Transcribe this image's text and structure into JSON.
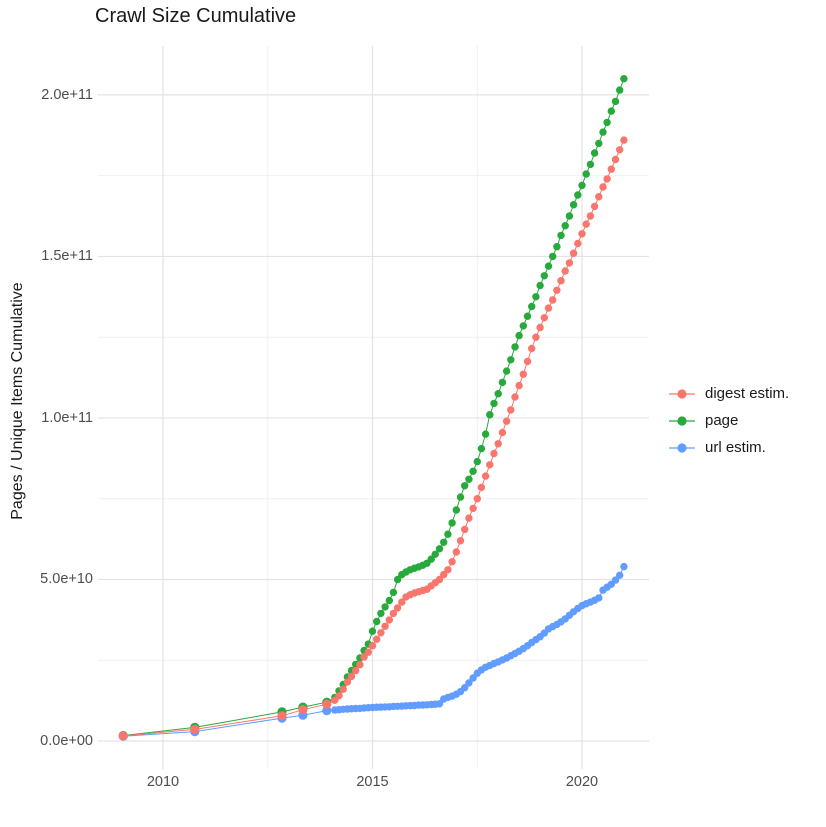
{
  "chart": {
    "title": "Crawl Size Cumulative",
    "ylabel": "Pages / Unique Items Cumulative"
  },
  "chart_data": {
    "type": "scatter",
    "title": "Crawl Size Cumulative",
    "xlabel": "",
    "ylabel": "Pages / Unique Items Cumulative",
    "x_unit": "year (decimal)",
    "y_unit": "count, in units of 1e9 (multiply by 1e9)",
    "xlim": [
      2008.45,
      2021.6
    ],
    "ylim_e9": [
      -8.7,
      215.2
    ],
    "grid": true,
    "legend_position": "right",
    "x_ticks": [
      {
        "value": 2010,
        "label": "2010"
      },
      {
        "value": 2015,
        "label": "2015"
      },
      {
        "value": 2020,
        "label": "2020"
      }
    ],
    "y_ticks": [
      {
        "value_e9": 0,
        "label": "0.0e+00"
      },
      {
        "value_e9": 50,
        "label": "5.0e+10"
      },
      {
        "value_e9": 100,
        "label": "1.0e+11"
      },
      {
        "value_e9": 150,
        "label": "1.5e+11"
      },
      {
        "value_e9": 200,
        "label": "2.0e+11"
      }
    ],
    "colors": {
      "background": "#FFFFFF",
      "grid_major": "#E3E3E3",
      "grid_minor": "#F0F0F0",
      "tick_text": "#4D4D4D",
      "title_text": "#1A1A1A"
    },
    "series": [
      {
        "key": "digest-estim",
        "name": "digest estim.",
        "color": "#F8766D",
        "points": [
          [
            2009.05,
            1.6
          ],
          [
            2010.76,
            3.6
          ],
          [
            2012.84,
            7.8
          ],
          [
            2013.34,
            9.7
          ],
          [
            2013.91,
            11.4
          ],
          [
            2014.1,
            12.6
          ],
          [
            2014.2,
            14
          ],
          [
            2014.3,
            16
          ],
          [
            2014.4,
            18.3
          ],
          [
            2014.5,
            20
          ],
          [
            2014.6,
            21.8
          ],
          [
            2014.7,
            23.6
          ],
          [
            2014.8,
            26
          ],
          [
            2014.9,
            27.5
          ],
          [
            2015,
            29.5
          ],
          [
            2015.1,
            31.5
          ],
          [
            2015.2,
            33.5
          ],
          [
            2015.3,
            35.5
          ],
          [
            2015.4,
            37.5
          ],
          [
            2015.5,
            39.5
          ],
          [
            2015.6,
            41.2
          ],
          [
            2015.7,
            43
          ],
          [
            2015.8,
            44.6
          ],
          [
            2015.9,
            45.3
          ],
          [
            2016,
            45.8
          ],
          [
            2016.1,
            46.2
          ],
          [
            2016.2,
            46.6
          ],
          [
            2016.3,
            47
          ],
          [
            2016.4,
            48
          ],
          [
            2016.5,
            49
          ],
          [
            2016.6,
            50
          ],
          [
            2016.7,
            51.5
          ],
          [
            2016.8,
            53
          ],
          [
            2016.9,
            55.5
          ],
          [
            2017,
            58.5
          ],
          [
            2017.1,
            62
          ],
          [
            2017.2,
            65.5
          ],
          [
            2017.3,
            69
          ],
          [
            2017.4,
            72
          ],
          [
            2017.5,
            75
          ],
          [
            2017.6,
            78.5
          ],
          [
            2017.7,
            82
          ],
          [
            2017.8,
            85.5
          ],
          [
            2017.9,
            89
          ],
          [
            2018,
            92
          ],
          [
            2018.1,
            95.5
          ],
          [
            2018.2,
            99
          ],
          [
            2018.3,
            102.5
          ],
          [
            2018.4,
            106.5
          ],
          [
            2018.5,
            110
          ],
          [
            2018.6,
            113.5
          ],
          [
            2018.7,
            117.5
          ],
          [
            2018.8,
            121.5
          ],
          [
            2018.9,
            125
          ],
          [
            2019,
            128
          ],
          [
            2019.1,
            131
          ],
          [
            2019.2,
            134
          ],
          [
            2019.3,
            136.5
          ],
          [
            2019.4,
            139.5
          ],
          [
            2019.5,
            142.5
          ],
          [
            2019.6,
            145.5
          ],
          [
            2019.7,
            148
          ],
          [
            2019.8,
            151
          ],
          [
            2019.9,
            154
          ],
          [
            2020,
            157
          ],
          [
            2020.1,
            160
          ],
          [
            2020.2,
            162.5
          ],
          [
            2020.3,
            165.5
          ],
          [
            2020.4,
            168.5
          ],
          [
            2020.5,
            171.5
          ],
          [
            2020.6,
            174
          ],
          [
            2020.7,
            177
          ],
          [
            2020.8,
            180
          ],
          [
            2020.9,
            183
          ],
          [
            2021,
            186
          ]
        ]
      },
      {
        "key": "page",
        "name": "page",
        "color": "#28A93C",
        "points": [
          [
            2009.05,
            1.7
          ],
          [
            2010.76,
            4.2
          ],
          [
            2012.84,
            9
          ],
          [
            2013.34,
            10.5
          ],
          [
            2013.91,
            12
          ],
          [
            2014.1,
            13.5
          ],
          [
            2014.2,
            15.5
          ],
          [
            2014.3,
            17.5
          ],
          [
            2014.4,
            19.8
          ],
          [
            2014.5,
            21.8
          ],
          [
            2014.6,
            23.7
          ],
          [
            2014.7,
            25.7
          ],
          [
            2014.8,
            28
          ],
          [
            2014.9,
            30
          ],
          [
            2015,
            34
          ],
          [
            2015.1,
            37
          ],
          [
            2015.2,
            39.5
          ],
          [
            2015.3,
            41.5
          ],
          [
            2015.4,
            43.5
          ],
          [
            2015.5,
            46
          ],
          [
            2015.6,
            50
          ],
          [
            2015.7,
            51.5
          ],
          [
            2015.8,
            52.3
          ],
          [
            2015.9,
            53
          ],
          [
            2016,
            53.5
          ],
          [
            2016.1,
            53.9
          ],
          [
            2016.2,
            54.4
          ],
          [
            2016.3,
            55
          ],
          [
            2016.4,
            56.3
          ],
          [
            2016.5,
            57.8
          ],
          [
            2016.6,
            59.5
          ],
          [
            2016.7,
            61.5
          ],
          [
            2016.8,
            64
          ],
          [
            2016.9,
            67.5
          ],
          [
            2017,
            71.5
          ],
          [
            2017.1,
            75.5
          ],
          [
            2017.2,
            79
          ],
          [
            2017.3,
            81
          ],
          [
            2017.4,
            83.5
          ],
          [
            2017.5,
            86.5
          ],
          [
            2017.6,
            90.5
          ],
          [
            2017.7,
            95
          ],
          [
            2017.8,
            101
          ],
          [
            2017.9,
            104.5
          ],
          [
            2018,
            107.5
          ],
          [
            2018.1,
            111
          ],
          [
            2018.2,
            114.5
          ],
          [
            2018.3,
            118
          ],
          [
            2018.4,
            122
          ],
          [
            2018.5,
            125.5
          ],
          [
            2018.6,
            128.5
          ],
          [
            2018.7,
            131.5
          ],
          [
            2018.8,
            134.5
          ],
          [
            2018.9,
            137.5
          ],
          [
            2019,
            141
          ],
          [
            2019.1,
            144
          ],
          [
            2019.2,
            147
          ],
          [
            2019.3,
            150
          ],
          [
            2019.4,
            153
          ],
          [
            2019.5,
            156.5
          ],
          [
            2019.6,
            159.5
          ],
          [
            2019.7,
            162.5
          ],
          [
            2019.8,
            166
          ],
          [
            2019.9,
            169
          ],
          [
            2020,
            172
          ],
          [
            2020.1,
            175.5
          ],
          [
            2020.2,
            178.5
          ],
          [
            2020.3,
            182
          ],
          [
            2020.4,
            185
          ],
          [
            2020.5,
            188.5
          ],
          [
            2020.6,
            191.5
          ],
          [
            2020.7,
            195
          ],
          [
            2020.8,
            198
          ],
          [
            2020.9,
            201.5
          ],
          [
            2021,
            205
          ]
        ]
      },
      {
        "key": "url-estim",
        "name": "url estim.",
        "color": "#619CFF",
        "points": [
          [
            2009.05,
            1.5
          ],
          [
            2010.76,
            2.9
          ],
          [
            2012.84,
            7.1
          ],
          [
            2013.34,
            8
          ],
          [
            2013.91,
            9.4
          ],
          [
            2014.1,
            9.6
          ],
          [
            2014.2,
            9.7
          ],
          [
            2014.3,
            9.8
          ],
          [
            2014.4,
            9.9
          ],
          [
            2014.5,
            10
          ],
          [
            2014.6,
            10.05
          ],
          [
            2014.7,
            10.1
          ],
          [
            2014.8,
            10.2
          ],
          [
            2014.9,
            10.3
          ],
          [
            2015,
            10.4
          ],
          [
            2015.1,
            10.45
          ],
          [
            2015.2,
            10.5
          ],
          [
            2015.3,
            10.55
          ],
          [
            2015.4,
            10.6
          ],
          [
            2015.5,
            10.7
          ],
          [
            2015.6,
            10.75
          ],
          [
            2015.7,
            10.8
          ],
          [
            2015.8,
            10.9
          ],
          [
            2015.9,
            10.95
          ],
          [
            2016,
            11
          ],
          [
            2016.1,
            11.1
          ],
          [
            2016.2,
            11.15
          ],
          [
            2016.3,
            11.2
          ],
          [
            2016.4,
            11.3
          ],
          [
            2016.5,
            11.4
          ],
          [
            2016.6,
            11.5
          ],
          [
            2016.7,
            13
          ],
          [
            2016.8,
            13.5
          ],
          [
            2016.9,
            13.9
          ],
          [
            2017,
            14.5
          ],
          [
            2017.1,
            15.3
          ],
          [
            2017.2,
            16.5
          ],
          [
            2017.3,
            18
          ],
          [
            2017.4,
            19.5
          ],
          [
            2017.5,
            21
          ],
          [
            2017.6,
            22
          ],
          [
            2017.7,
            22.8
          ],
          [
            2017.8,
            23.4
          ],
          [
            2017.9,
            24
          ],
          [
            2018,
            24.5
          ],
          [
            2018.1,
            25.1
          ],
          [
            2018.2,
            25.7
          ],
          [
            2018.3,
            26.4
          ],
          [
            2018.4,
            27.1
          ],
          [
            2018.5,
            27.8
          ],
          [
            2018.6,
            28.6
          ],
          [
            2018.7,
            29.5
          ],
          [
            2018.8,
            30.5
          ],
          [
            2018.9,
            31.4
          ],
          [
            2019,
            32.3
          ],
          [
            2019.1,
            33.4
          ],
          [
            2019.2,
            34.7
          ],
          [
            2019.3,
            35.4
          ],
          [
            2019.4,
            36.1
          ],
          [
            2019.5,
            36.9
          ],
          [
            2019.6,
            37.8
          ],
          [
            2019.7,
            38.9
          ],
          [
            2019.8,
            40
          ],
          [
            2019.9,
            41
          ],
          [
            2020,
            41.9
          ],
          [
            2020.1,
            42.5
          ],
          [
            2020.2,
            43
          ],
          [
            2020.3,
            43.6
          ],
          [
            2020.4,
            44.3
          ],
          [
            2020.5,
            46.7
          ],
          [
            2020.6,
            47.6
          ],
          [
            2020.7,
            48.5
          ],
          [
            2020.8,
            49.8
          ],
          [
            2020.9,
            51.3
          ],
          [
            2021,
            54
          ]
        ]
      }
    ]
  }
}
